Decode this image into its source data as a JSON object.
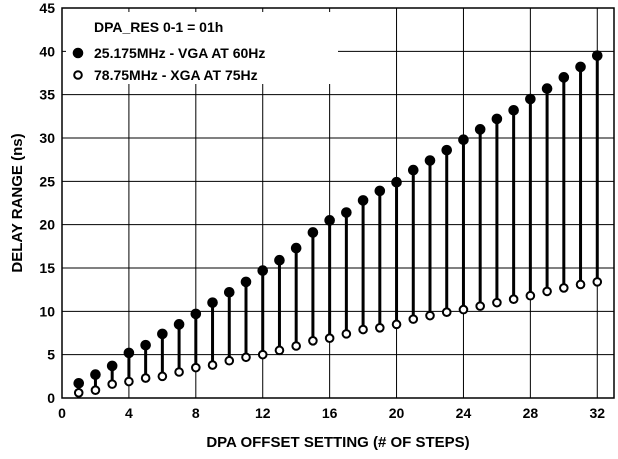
{
  "chart_data": {
    "type": "scatter",
    "xlabel": "DPA OFFSET SETTING (# OF STEPS)",
    "ylabel": "DELAY RANGE (ns)",
    "xlim": [
      0,
      33
    ],
    "ylim": [
      0,
      45
    ],
    "xticks": [
      0,
      4,
      8,
      12,
      16,
      20,
      24,
      28,
      32
    ],
    "yticks": [
      0,
      5,
      10,
      15,
      20,
      25,
      30,
      35,
      40,
      45
    ],
    "grid": true,
    "legend_position": "top-left",
    "legend_title": "DPA_RES 0-1 = 01h",
    "range_lines": true,
    "x": [
      1,
      2,
      3,
      4,
      5,
      6,
      7,
      8,
      9,
      10,
      11,
      12,
      13,
      14,
      15,
      16,
      17,
      18,
      19,
      20,
      21,
      22,
      23,
      24,
      25,
      26,
      27,
      28,
      29,
      30,
      31,
      32
    ],
    "series": [
      {
        "name": "25.175MHz - VGA AT 60Hz",
        "marker": "filled-circle",
        "values": [
          1.7,
          2.7,
          3.7,
          5.2,
          6.1,
          7.4,
          8.5,
          9.7,
          11.0,
          12.2,
          13.4,
          14.7,
          15.9,
          17.3,
          19.1,
          20.5,
          21.4,
          22.8,
          23.9,
          24.9,
          26.3,
          27.4,
          28.6,
          29.8,
          31.0,
          32.2,
          33.2,
          34.5,
          35.7,
          37.0,
          38.2,
          39.5
        ]
      },
      {
        "name": "78.75MHz - XGA AT 75Hz",
        "marker": "open-circle",
        "values": [
          0.6,
          0.9,
          1.6,
          1.9,
          2.3,
          2.5,
          3.0,
          3.5,
          3.8,
          4.3,
          4.7,
          5.0,
          5.5,
          6.0,
          6.6,
          6.9,
          7.4,
          7.9,
          8.1,
          8.5,
          9.1,
          9.5,
          9.9,
          10.2,
          10.6,
          11.0,
          11.4,
          11.8,
          12.3,
          12.7,
          13.1,
          13.4
        ]
      }
    ]
  }
}
